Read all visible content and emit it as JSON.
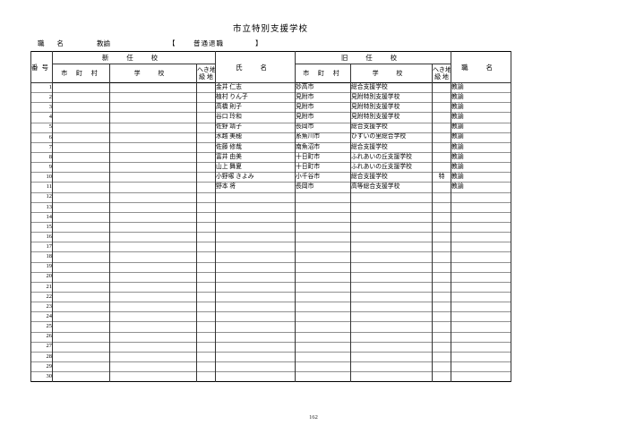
{
  "page": {
    "title": "市立特別支援学校",
    "page_number": "162"
  },
  "meta": {
    "position_label": "職 名",
    "position_value": "教諭",
    "bracket_open": "【",
    "retirement_type": "普通退職",
    "bracket_close": "】"
  },
  "table": {
    "group_headers": {
      "new": "新 任 校",
      "old": "旧 任 校"
    },
    "headers": {
      "number": "番号",
      "city": "市 町 村",
      "school": "学 校",
      "hekichi_line1": "へき地",
      "hekichi_line2": "級 地",
      "name": "氏 名",
      "job_title": "職 名"
    },
    "rows": [
      {
        "no": "1",
        "new_city": "",
        "new_school": "",
        "new_grade": "",
        "name": "金井 仁志",
        "old_city": "妙高市",
        "old_school": "総合支援学校",
        "old_grade": "",
        "job": "教諭"
      },
      {
        "no": "2",
        "new_city": "",
        "new_school": "",
        "new_grade": "",
        "name": "植村 りん子",
        "old_city": "見附市",
        "old_school": "見附特別支援学校",
        "old_grade": "",
        "job": "教諭"
      },
      {
        "no": "3",
        "new_city": "",
        "new_school": "",
        "new_grade": "",
        "name": "高橋 則子",
        "old_city": "見附市",
        "old_school": "見附特別支援学校",
        "old_grade": "",
        "job": "教諭"
      },
      {
        "no": "4",
        "new_city": "",
        "new_school": "",
        "new_grade": "",
        "name": "谷口 玲和",
        "old_city": "見附市",
        "old_school": "見附特別支援学校",
        "old_grade": "",
        "job": "教諭"
      },
      {
        "no": "5",
        "new_city": "",
        "new_school": "",
        "new_grade": "",
        "name": "佐野 靖子",
        "old_city": "長岡市",
        "old_school": "総合支援学校",
        "old_grade": "",
        "job": "教諭"
      },
      {
        "no": "6",
        "new_city": "",
        "new_school": "",
        "new_grade": "",
        "name": "水越 美穂",
        "old_city": "糸魚川市",
        "old_school": "ひすいの里総合学校",
        "old_grade": "",
        "job": "教諭"
      },
      {
        "no": "7",
        "new_city": "",
        "new_school": "",
        "new_grade": "",
        "name": "佐藤 修哉",
        "old_city": "南魚沼市",
        "old_school": "総合支援学校",
        "old_grade": "",
        "job": "教諭"
      },
      {
        "no": "8",
        "new_city": "",
        "new_school": "",
        "new_grade": "",
        "name": "富井 由美",
        "old_city": "十日町市",
        "old_school": "ふれあいの丘支援学校",
        "old_grade": "",
        "job": "教諭"
      },
      {
        "no": "9",
        "new_city": "",
        "new_school": "",
        "new_grade": "",
        "name": "山上 舞夏",
        "old_city": "十日町市",
        "old_school": "ふれあいの丘支援学校",
        "old_grade": "",
        "job": "教諭"
      },
      {
        "no": "10",
        "new_city": "",
        "new_school": "",
        "new_grade": "",
        "name": "小野塚 きよみ",
        "old_city": "小千谷市",
        "old_school": "総合支援学校",
        "old_grade": "特",
        "job": "教諭"
      },
      {
        "no": "11",
        "new_city": "",
        "new_school": "",
        "new_grade": "",
        "name": "野本 将",
        "old_city": "長岡市",
        "old_school": "高等総合支援学校",
        "old_grade": "",
        "job": "教諭"
      },
      {
        "no": "12",
        "new_city": "",
        "new_school": "",
        "new_grade": "",
        "name": "",
        "old_city": "",
        "old_school": "",
        "old_grade": "",
        "job": ""
      },
      {
        "no": "13",
        "new_city": "",
        "new_school": "",
        "new_grade": "",
        "name": "",
        "old_city": "",
        "old_school": "",
        "old_grade": "",
        "job": ""
      },
      {
        "no": "14",
        "new_city": "",
        "new_school": "",
        "new_grade": "",
        "name": "",
        "old_city": "",
        "old_school": "",
        "old_grade": "",
        "job": ""
      },
      {
        "no": "15",
        "new_city": "",
        "new_school": "",
        "new_grade": "",
        "name": "",
        "old_city": "",
        "old_school": "",
        "old_grade": "",
        "job": ""
      },
      {
        "no": "16",
        "new_city": "",
        "new_school": "",
        "new_grade": "",
        "name": "",
        "old_city": "",
        "old_school": "",
        "old_grade": "",
        "job": ""
      },
      {
        "no": "17",
        "new_city": "",
        "new_school": "",
        "new_grade": "",
        "name": "",
        "old_city": "",
        "old_school": "",
        "old_grade": "",
        "job": ""
      },
      {
        "no": "18",
        "new_city": "",
        "new_school": "",
        "new_grade": "",
        "name": "",
        "old_city": "",
        "old_school": "",
        "old_grade": "",
        "job": ""
      },
      {
        "no": "19",
        "new_city": "",
        "new_school": "",
        "new_grade": "",
        "name": "",
        "old_city": "",
        "old_school": "",
        "old_grade": "",
        "job": ""
      },
      {
        "no": "20",
        "new_city": "",
        "new_school": "",
        "new_grade": "",
        "name": "",
        "old_city": "",
        "old_school": "",
        "old_grade": "",
        "job": ""
      },
      {
        "no": "21",
        "new_city": "",
        "new_school": "",
        "new_grade": "",
        "name": "",
        "old_city": "",
        "old_school": "",
        "old_grade": "",
        "job": ""
      },
      {
        "no": "22",
        "new_city": "",
        "new_school": "",
        "new_grade": "",
        "name": "",
        "old_city": "",
        "old_school": "",
        "old_grade": "",
        "job": ""
      },
      {
        "no": "23",
        "new_city": "",
        "new_school": "",
        "new_grade": "",
        "name": "",
        "old_city": "",
        "old_school": "",
        "old_grade": "",
        "job": ""
      },
      {
        "no": "24",
        "new_city": "",
        "new_school": "",
        "new_grade": "",
        "name": "",
        "old_city": "",
        "old_school": "",
        "old_grade": "",
        "job": ""
      },
      {
        "no": "25",
        "new_city": "",
        "new_school": "",
        "new_grade": "",
        "name": "",
        "old_city": "",
        "old_school": "",
        "old_grade": "",
        "job": ""
      },
      {
        "no": "26",
        "new_city": "",
        "new_school": "",
        "new_grade": "",
        "name": "",
        "old_city": "",
        "old_school": "",
        "old_grade": "",
        "job": ""
      },
      {
        "no": "27",
        "new_city": "",
        "new_school": "",
        "new_grade": "",
        "name": "",
        "old_city": "",
        "old_school": "",
        "old_grade": "",
        "job": ""
      },
      {
        "no": "28",
        "new_city": "",
        "new_school": "",
        "new_grade": "",
        "name": "",
        "old_city": "",
        "old_school": "",
        "old_grade": "",
        "job": ""
      },
      {
        "no": "29",
        "new_city": "",
        "new_school": "",
        "new_grade": "",
        "name": "",
        "old_city": "",
        "old_school": "",
        "old_grade": "",
        "job": ""
      },
      {
        "no": "30",
        "new_city": "",
        "new_school": "",
        "new_grade": "",
        "name": "",
        "old_city": "",
        "old_school": "",
        "old_grade": "",
        "job": ""
      }
    ]
  }
}
